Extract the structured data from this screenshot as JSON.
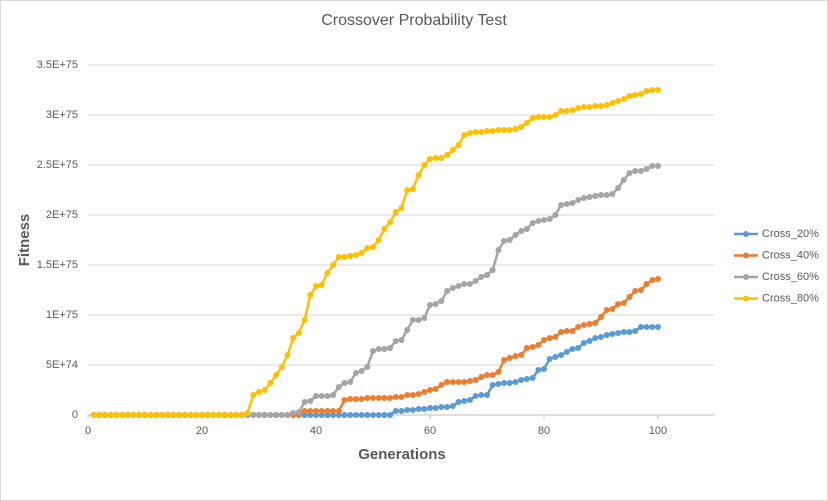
{
  "chart_data": {
    "type": "line",
    "title": "Crossover Probability Test",
    "x_label": "Generations",
    "y_label": "Fitness",
    "x": [
      1,
      2,
      3,
      4,
      5,
      6,
      7,
      8,
      9,
      10,
      11,
      12,
      13,
      14,
      15,
      16,
      17,
      18,
      19,
      20,
      21,
      22,
      23,
      24,
      25,
      26,
      27,
      28,
      29,
      30,
      31,
      32,
      33,
      34,
      35,
      36,
      37,
      38,
      39,
      40,
      41,
      42,
      43,
      44,
      45,
      46,
      47,
      48,
      49,
      50,
      51,
      52,
      53,
      54,
      55,
      56,
      57,
      58,
      59,
      60,
      61,
      62,
      63,
      64,
      65,
      66,
      67,
      68,
      69,
      70,
      71,
      72,
      73,
      74,
      75,
      76,
      77,
      78,
      79,
      80,
      81,
      82,
      83,
      84,
      85,
      86,
      87,
      88,
      89,
      90,
      91,
      92,
      93,
      94,
      95,
      96,
      97,
      98,
      99,
      100
    ],
    "xlim": [
      0,
      110
    ],
    "xticks": [
      0,
      20,
      40,
      60,
      80,
      100
    ],
    "ylim": [
      0,
      3.5e+75
    ],
    "yticks": [
      0,
      {
        "value": 5e+74,
        "label": "5E+74"
      },
      {
        "value": 1e+75,
        "label": "1E+75"
      },
      {
        "value": 1.5e+75,
        "label": "1.5E+75"
      },
      {
        "value": 2e+75,
        "label": "2E+75"
      },
      {
        "value": 2.5e+75,
        "label": "2.5E+75"
      },
      {
        "value": 3e+75,
        "label": "3E+75"
      },
      {
        "value": 3.5e+75,
        "label": "3.5E+75"
      }
    ],
    "grid": true,
    "legend": "right",
    "series": [
      {
        "name": "Cross_20%",
        "color": "#5b9bd5",
        "values": [
          0,
          0,
          0,
          0,
          0,
          0,
          0,
          0,
          0,
          0,
          0,
          0,
          0,
          0,
          0,
          0,
          0,
          0,
          0,
          0,
          0,
          0,
          0,
          0,
          0,
          0,
          0,
          0,
          0,
          0,
          0,
          0,
          0,
          0,
          0,
          0,
          0,
          0,
          0,
          0,
          0,
          0,
          0,
          0,
          0,
          0,
          0,
          0,
          0,
          0,
          0,
          0,
          0,
          4e+73,
          4e+73,
          5e+73,
          5e+73,
          6e+73,
          6e+73,
          7e+73,
          7e+73,
          8e+73,
          8e+73,
          9e+73,
          1.3e+74,
          1.4e+74,
          1.5e+74,
          1.9e+74,
          2e+74,
          2e+74,
          3e+74,
          3.1e+74,
          3.2e+74,
          3.2e+74,
          3.3e+74,
          3.5e+74,
          3.6e+74,
          3.7e+74,
          4.5e+74,
          4.6e+74,
          5.6e+74,
          5.8e+74,
          6e+74,
          6.3e+74,
          6.6e+74,
          6.7e+74,
          7.2e+74,
          7.4e+74,
          7.7e+74,
          7.8e+74,
          8e+74,
          8.1e+74,
          8.2e+74,
          8.3e+74,
          8.3e+74,
          8.4e+74,
          8.8e+74,
          8.8e+74,
          8.8e+74,
          8.8e+74
        ]
      },
      {
        "name": "Cross_40%",
        "color": "#ed7d31",
        "values": [
          0,
          0,
          0,
          0,
          0,
          0,
          0,
          0,
          0,
          0,
          0,
          0,
          0,
          0,
          0,
          0,
          0,
          0,
          0,
          0,
          0,
          0,
          0,
          0,
          0,
          0,
          0,
          0,
          0,
          0,
          0,
          0,
          0,
          0,
          0,
          0,
          0,
          4e+73,
          4e+73,
          4e+73,
          4e+73,
          4e+73,
          4e+73,
          4e+73,
          1.5e+74,
          1.6e+74,
          1.6e+74,
          1.6e+74,
          1.7e+74,
          1.7e+74,
          1.7e+74,
          1.7e+74,
          1.7e+74,
          1.8e+74,
          1.8e+74,
          2e+74,
          2e+74,
          2.1e+74,
          2.3e+74,
          2.5e+74,
          2.6e+74,
          3e+74,
          3.3e+74,
          3.3e+74,
          3.3e+74,
          3.3e+74,
          3.4e+74,
          3.5e+74,
          3.8e+74,
          4e+74,
          4e+74,
          4.3e+74,
          5.5e+74,
          5.7e+74,
          5.9e+74,
          6e+74,
          6.7e+74,
          6.8e+74,
          7e+74,
          7.5e+74,
          7.7e+74,
          7.8e+74,
          8.3e+74,
          8.4e+74,
          8.4e+74,
          8.8e+74,
          9e+74,
          9.1e+74,
          9.2e+74,
          9.8e+74,
          1.05e+75,
          1.06e+75,
          1.11e+75,
          1.12e+75,
          1.18e+75,
          1.24e+75,
          1.25e+75,
          1.31e+75,
          1.35e+75,
          1.36e+75
        ]
      },
      {
        "name": "Cross_60%",
        "color": "#a5a5a5",
        "values": [
          0,
          0,
          0,
          0,
          0,
          0,
          0,
          0,
          0,
          0,
          0,
          0,
          0,
          0,
          0,
          0,
          0,
          0,
          0,
          0,
          0,
          0,
          0,
          0,
          0,
          0,
          0,
          0,
          0,
          0,
          0,
          0,
          0,
          0,
          0,
          2e+73,
          3e+73,
          1.3e+74,
          1.4e+74,
          1.9e+74,
          1.9e+74,
          1.9e+74,
          2e+74,
          2.8e+74,
          3.2e+74,
          3.3e+74,
          4.2e+74,
          4.4e+74,
          4.8e+74,
          6.4e+74,
          6.6e+74,
          6.6e+74,
          6.7e+74,
          7.4e+74,
          7.5e+74,
          8.5e+74,
          9.5e+74,
          9.5e+74,
          9.7e+74,
          1.1e+75,
          1.11e+75,
          1.14e+75,
          1.24e+75,
          1.27e+75,
          1.29e+75,
          1.31e+75,
          1.31e+75,
          1.34e+75,
          1.38e+75,
          1.4e+75,
          1.45e+75,
          1.65e+75,
          1.74e+75,
          1.75e+75,
          1.8e+75,
          1.84e+75,
          1.86e+75,
          1.92e+75,
          1.94e+75,
          1.95e+75,
          1.96e+75,
          2e+75,
          2.1e+75,
          2.11e+75,
          2.12e+75,
          2.15e+75,
          2.17e+75,
          2.18e+75,
          2.19e+75,
          2.2e+75,
          2.2e+75,
          2.21e+75,
          2.27e+75,
          2.35e+75,
          2.42e+75,
          2.44e+75,
          2.44e+75,
          2.46e+75,
          2.49e+75,
          2.49e+75
        ]
      },
      {
        "name": "Cross_80%",
        "color": "#ffc000",
        "values": [
          0,
          0,
          0,
          0,
          0,
          0,
          0,
          0,
          0,
          0,
          0,
          0,
          0,
          0,
          0,
          0,
          0,
          0,
          0,
          0,
          0,
          0,
          0,
          0,
          0,
          0,
          0,
          2e+73,
          2e+74,
          2.3e+74,
          2.5e+74,
          3.2e+74,
          4e+74,
          4.8e+74,
          6e+74,
          7.7e+74,
          8.2e+74,
          9.5e+74,
          1.2e+75,
          1.29e+75,
          1.3e+75,
          1.42e+75,
          1.5e+75,
          1.58e+75,
          1.58e+75,
          1.59e+75,
          1.6e+75,
          1.62e+75,
          1.67e+75,
          1.68e+75,
          1.75e+75,
          1.86e+75,
          1.93e+75,
          2.03e+75,
          2.07e+75,
          2.25e+75,
          2.26e+75,
          2.4e+75,
          2.5e+75,
          2.56e+75,
          2.57e+75,
          2.57e+75,
          2.6e+75,
          2.65e+75,
          2.7e+75,
          2.8e+75,
          2.82e+75,
          2.83e+75,
          2.83e+75,
          2.84e+75,
          2.84e+75,
          2.85e+75,
          2.85e+75,
          2.85e+75,
          2.86e+75,
          2.88e+75,
          2.92e+75,
          2.97e+75,
          2.98e+75,
          2.98e+75,
          2.98e+75,
          3e+75,
          3.04e+75,
          3.04e+75,
          3.05e+75,
          3.07e+75,
          3.08e+75,
          3.08e+75,
          3.09e+75,
          3.09e+75,
          3.1e+75,
          3.12e+75,
          3.14e+75,
          3.16e+75,
          3.19e+75,
          3.2e+75,
          3.21e+75,
          3.24e+75,
          3.25e+75,
          3.25e+75
        ]
      }
    ]
  }
}
